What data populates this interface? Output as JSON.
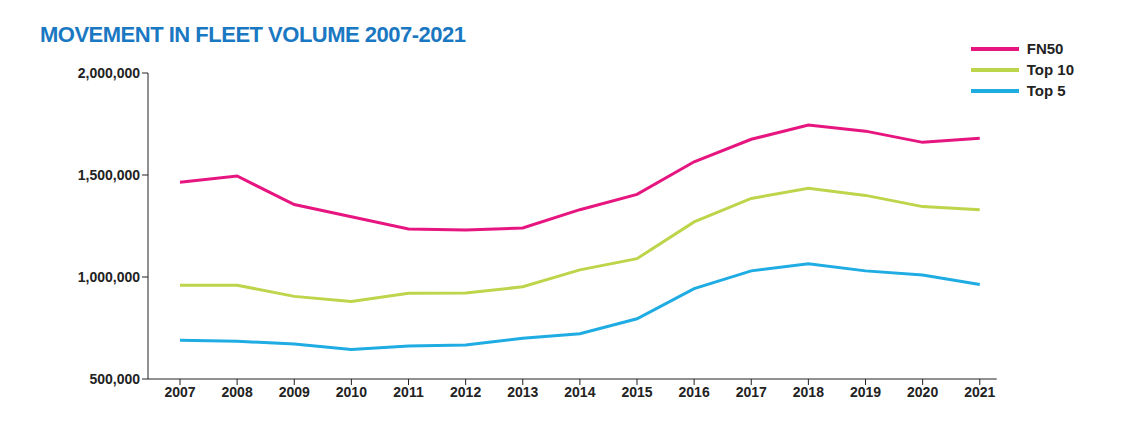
{
  "chart_data": {
    "type": "line",
    "title": "MOVEMENT IN FLEET VOLUME 2007-2021",
    "categories": [
      "2007",
      "2008",
      "2009",
      "2010",
      "2011",
      "2012",
      "2013",
      "2014",
      "2015",
      "2016",
      "2017",
      "2018",
      "2019",
      "2020",
      "2021"
    ],
    "series": [
      {
        "name": "FN50",
        "color": "#e6157f",
        "values": [
          1465000,
          1495000,
          1355000,
          1295000,
          1235000,
          1230000,
          1240000,
          1330000,
          1405000,
          1565000,
          1675000,
          1745000,
          1715000,
          1660000,
          1680000
        ]
      },
      {
        "name": "Top 10",
        "color": "#bcd54a",
        "values": [
          960000,
          960000,
          905000,
          880000,
          920000,
          922000,
          952000,
          1035000,
          1090000,
          1270000,
          1385000,
          1435000,
          1400000,
          1345000,
          1330000
        ]
      },
      {
        "name": "Top 5",
        "color": "#1eace3",
        "values": [
          690000,
          685000,
          672000,
          645000,
          662000,
          667000,
          700000,
          722000,
          795000,
          943000,
          1030000,
          1065000,
          1030000,
          1010000,
          963000
        ]
      }
    ],
    "ylim": [
      500000,
      2000000
    ],
    "yticks": [
      {
        "value": 500000,
        "label": "500,000"
      },
      {
        "value": 1000000,
        "label": "1,000,000"
      },
      {
        "value": 1500000,
        "label": "1,500,000"
      },
      {
        "value": 2000000,
        "label": "2,000,000"
      }
    ],
    "grid": false,
    "legend": "top-right"
  }
}
